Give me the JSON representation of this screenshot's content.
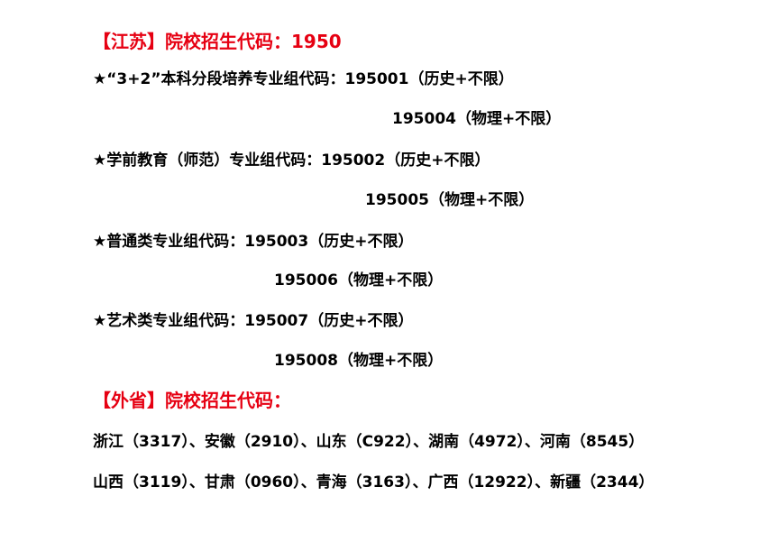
{
  "jiangsu": {
    "heading": "【江苏】院校招生代码：1950",
    "groups": [
      {
        "label": "★“3+2”本科分段培养专业组代码：195001（历史+不限）",
        "second": "195004（物理+不限）"
      },
      {
        "label": "★学前教育（师范）专业组代码：195002（历史+不限）",
        "second": "195005（物理+不限）"
      },
      {
        "label": "★普通类专业组代码：195003（历史+不限）",
        "second": "195006（物理+不限）"
      },
      {
        "label": "★艺术类专业组代码：195007（历史+不限）",
        "second": "195008（物理+不限）"
      }
    ]
  },
  "other": {
    "heading": "【外省】院校招生代码：",
    "lines": [
      "浙江（3317）、安徽（2910）、山东（C922）、湖南（4972）、河南（8545）",
      "山西（3119）、甘肃（0960）、青海（3163）、广西（12922）、新疆（2344）"
    ]
  },
  "colors": {
    "heading": "#e60012",
    "text": "#000000"
  }
}
